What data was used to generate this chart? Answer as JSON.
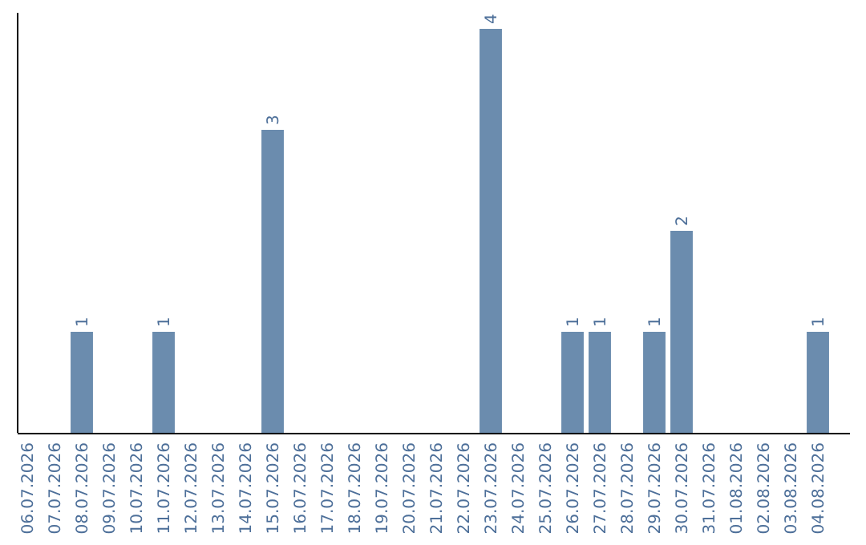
{
  "chart_data": {
    "type": "bar",
    "categories": [
      "06.07.2026",
      "07.07.2026",
      "08.07.2026",
      "09.07.2026",
      "10.07.2026",
      "11.07.2026",
      "12.07.2026",
      "13.07.2026",
      "14.07.2026",
      "15.07.2026",
      "16.07.2026",
      "17.07.2026",
      "18.07.2026",
      "19.07.2026",
      "20.07.2026",
      "21.07.2026",
      "22.07.2026",
      "23.07.2026",
      "24.07.2026",
      "25.07.2026",
      "26.07.2026",
      "27.07.2026",
      "28.07.2026",
      "29.07.2026",
      "30.07.2026",
      "31.07.2026",
      "01.08.2026",
      "02.08.2026",
      "03.08.2026",
      "04.08.2026"
    ],
    "values": [
      0,
      0,
      1,
      0,
      0,
      1,
      0,
      0,
      0,
      3,
      0,
      0,
      0,
      0,
      0,
      0,
      0,
      4,
      0,
      0,
      1,
      1,
      0,
      1,
      2,
      0,
      0,
      0,
      0,
      1
    ],
    "value_labels": [
      null,
      null,
      "1",
      null,
      null,
      "1",
      null,
      null,
      null,
      "3",
      null,
      null,
      null,
      null,
      null,
      null,
      null,
      "4",
      null,
      null,
      "1",
      "1",
      null,
      "1",
      "2",
      null,
      null,
      null,
      null,
      "1"
    ],
    "color": "#6b8cae"
  }
}
